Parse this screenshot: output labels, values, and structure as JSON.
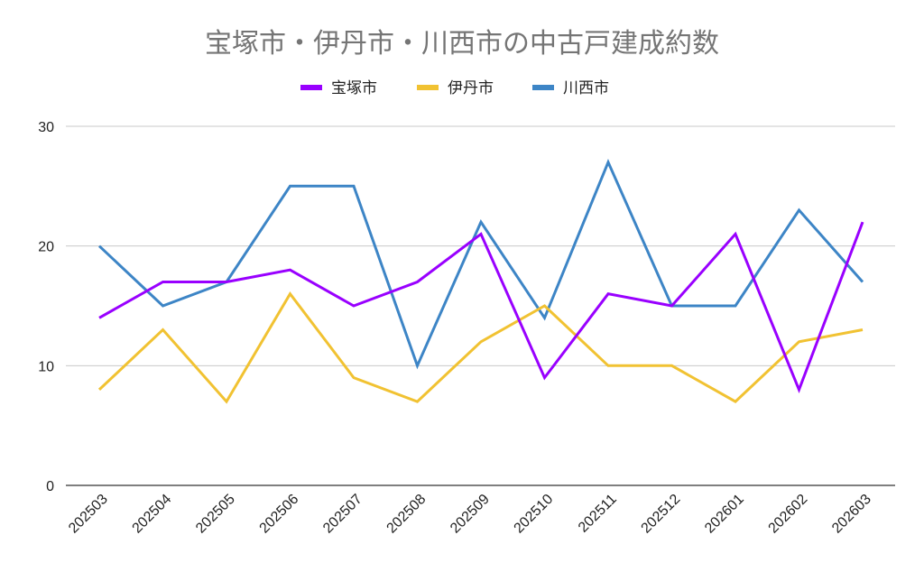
{
  "chart_data": {
    "type": "line",
    "title": "宝塚市・伊丹市・川西市の中古戸建成約数",
    "xlabel": "",
    "ylabel": "",
    "categories": [
      "202503",
      "202504",
      "202505",
      "202506",
      "202507",
      "202508",
      "202509",
      "202510",
      "202511",
      "202512",
      "202601",
      "202602",
      "202603"
    ],
    "ylim": [
      0,
      30
    ],
    "yticks": [
      0,
      10,
      20,
      30
    ],
    "grid": true,
    "legend_position": "top-center",
    "series": [
      {
        "name": "宝塚市",
        "color": "#9900ff",
        "values": [
          14,
          17,
          17,
          18,
          15,
          17,
          21,
          9,
          16,
          15,
          21,
          8,
          22
        ]
      },
      {
        "name": "伊丹市",
        "color": "#f1c232",
        "values": [
          8,
          13,
          7,
          16,
          9,
          7,
          12,
          15,
          10,
          10,
          7,
          12,
          13
        ]
      },
      {
        "name": "川西市",
        "color": "#3d85c6",
        "values": [
          20,
          15,
          17,
          25,
          25,
          10,
          22,
          14,
          27,
          15,
          15,
          23,
          17
        ]
      }
    ]
  }
}
